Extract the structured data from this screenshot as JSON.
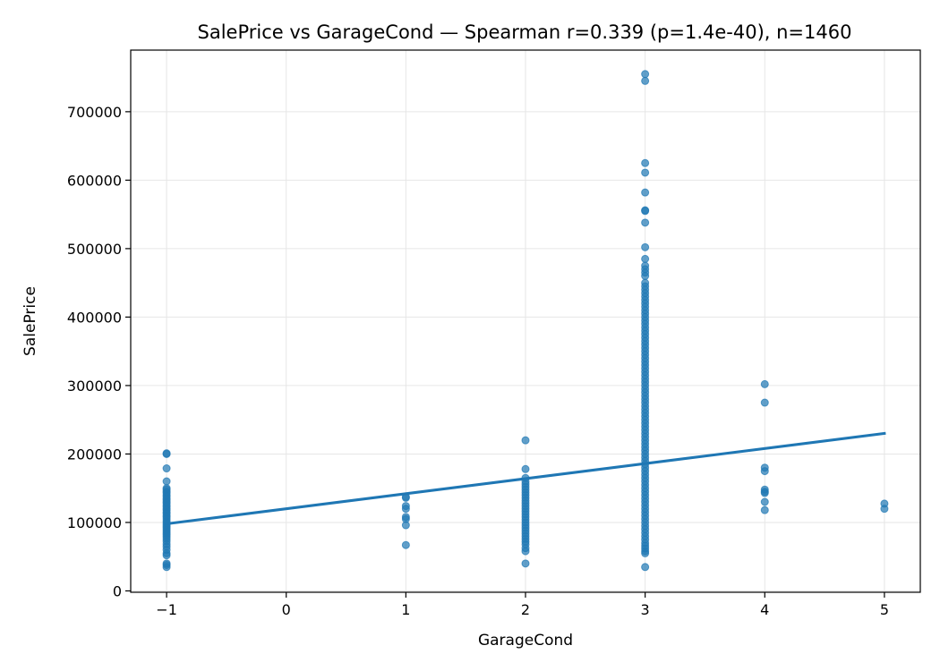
{
  "chart_data": {
    "type": "scatter",
    "title": "SalePrice vs GarageCond — Spearman r=0.339 (p=1.4e-40), n=1460",
    "xlabel": "GarageCond",
    "ylabel": "SalePrice",
    "xlim": [
      -1.3,
      5.3
    ],
    "ylim": [
      -2000,
      790000
    ],
    "xticks": [
      -1,
      0,
      1,
      2,
      3,
      4,
      5
    ],
    "xtick_labels": [
      "−1",
      "0",
      "1",
      "2",
      "3",
      "4",
      "5"
    ],
    "yticks": [
      0,
      100000,
      200000,
      300000,
      400000,
      500000,
      600000,
      700000
    ],
    "ytick_labels": [
      "0",
      "100000",
      "200000",
      "300000",
      "400000",
      "500000",
      "600000",
      "700000"
    ],
    "grid": true,
    "point_color": "#1f77b4",
    "line_color": "#1f77b4",
    "fit_line": {
      "x": [
        -1,
        5
      ],
      "y": [
        98000,
        230000
      ]
    },
    "points": [
      {
        "x": -1,
        "y": [
          34900,
          37900,
          40000,
          52000,
          55000,
          60000,
          64500,
          68400,
          72500,
          76000,
          79000,
          82000,
          84500,
          87000,
          89500,
          92000,
          94500,
          97000,
          99500,
          102000,
          105000,
          108000,
          110000,
          113000,
          115000,
          118000,
          120000,
          123000,
          125000,
          128000,
          130000,
          133000,
          135000,
          138000,
          140000,
          143000,
          145000,
          148000,
          150000,
          160000,
          179000,
          200000,
          201000
        ]
      },
      {
        "x": 1,
        "y": [
          67000,
          96000,
          105000,
          108000,
          120000,
          124000,
          136000,
          137500
        ]
      },
      {
        "x": 2,
        "y": [
          40000,
          58000,
          62500,
          68000,
          72000,
          76000,
          80000,
          84000,
          88000,
          92000,
          96000,
          100000,
          104000,
          108000,
          112000,
          116000,
          120000,
          124000,
          128000,
          132000,
          136000,
          140000,
          144000,
          148000,
          152000,
          156000,
          160000,
          165000,
          178000,
          220000
        ]
      },
      {
        "x": 3,
        "y": [
          34900,
          55000,
          58000,
          62000,
          66000,
          70000,
          75000,
          80000,
          85000,
          90000,
          95000,
          100000,
          105000,
          110000,
          115000,
          120000,
          125000,
          130000,
          135000,
          140000,
          145000,
          150000,
          155000,
          160000,
          165000,
          170000,
          175000,
          180000,
          185000,
          190000,
          195000,
          200000,
          205000,
          210000,
          215000,
          220000,
          225000,
          230000,
          235000,
          240000,
          245000,
          250000,
          255000,
          260000,
          265000,
          270000,
          275000,
          280000,
          285000,
          290000,
          295000,
          300000,
          305000,
          310000,
          315000,
          320000,
          325000,
          330000,
          335000,
          340000,
          345000,
          350000,
          355000,
          360000,
          365000,
          370000,
          375000,
          380000,
          385000,
          390000,
          395000,
          400000,
          405000,
          410000,
          415000,
          420000,
          425000,
          430000,
          435000,
          440000,
          445000,
          450000,
          460000,
          465000,
          470000,
          475000,
          485000,
          502000,
          538000,
          555000,
          556000,
          582000,
          611000,
          625000,
          745000,
          755000
        ]
      },
      {
        "x": 4,
        "y": [
          118000,
          130000,
          143000,
          145000,
          148000,
          175000,
          180000,
          275000,
          302000
        ]
      },
      {
        "x": 5,
        "y": [
          120000,
          127500
        ]
      }
    ]
  }
}
